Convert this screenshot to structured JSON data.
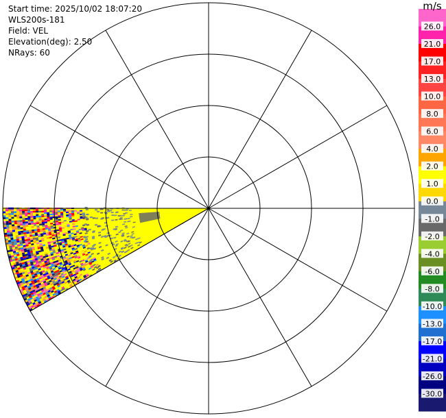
{
  "header": {
    "start_time": "Start time: 2025/10/02 18:07:20",
    "instrument": "WLS200s-181",
    "field": "Field: VEL",
    "elevation": "Elevation(deg): 2.50",
    "nrays": "NRays: 60"
  },
  "chart_data": {
    "type": "heatmap",
    "projection": "polar PPI scan",
    "field": "VEL",
    "units": "m/s",
    "elevation_deg": 2.5,
    "nrays": 60,
    "range_rings": 4,
    "spokes_deg": [
      0,
      30,
      60,
      90,
      120,
      150,
      180,
      210,
      240,
      270,
      300,
      330
    ],
    "sector": {
      "az_start_deg": 240,
      "az_end_deg": 270
    },
    "range_fraction_of_max": {
      "yellow_band_max": 0.52,
      "gray_near_origin": [
        0.24,
        0.34
      ],
      "noisy_region_start": 0.6,
      "sector_edge": 1.0
    },
    "dominant_values_ms": {
      "near_range": 2.0,
      "gray": 0.0
    },
    "colorbar": {
      "label": "m/s",
      "ticks": [
        "26.0",
        "21.0",
        "17.0",
        "13.0",
        "10.0",
        "8.0",
        "6.0",
        "4.0",
        "2.0",
        "1.0",
        "0.0",
        "-1.0",
        "-2.0",
        "-4.0",
        "-6.0",
        "-8.0",
        "-10.0",
        "-13.0",
        "-17.0",
        "-21.0",
        "-26.0",
        "-30.0"
      ],
      "colors": [
        "#ff66cc",
        "#ff22aa",
        "#ff0000",
        "#ff2222",
        "#ff4444",
        "#ff6644",
        "#ff7755",
        "#ff8866",
        "#ffa500",
        "#ffff00",
        "#ffd800",
        "#778899",
        "#696969",
        "#9acd32",
        "#6b8e23",
        "#228b22",
        "#2e8b57",
        "#1e90ff",
        "#1f6fd0",
        "#0000ff",
        "#0000c0",
        "#000080",
        "#191970"
      ]
    }
  }
}
